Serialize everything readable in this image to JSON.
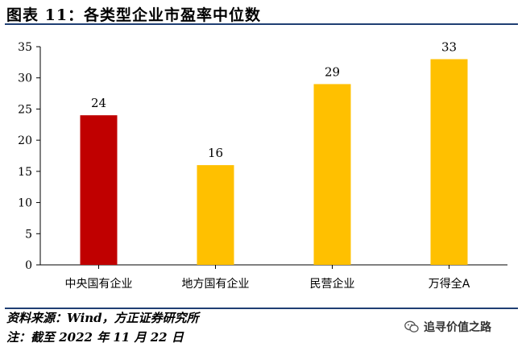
{
  "figure": {
    "title": "图表 11：各类型企业市盈率中位数",
    "source": "资料来源：Wind，方正证券研究所",
    "note": "注：截至 2022 年 11 月 22 日",
    "watermark": "追寻价值之路"
  },
  "chart_data": {
    "type": "bar",
    "title": "",
    "xlabel": "",
    "ylabel": "",
    "categories": [
      "中央国有企业",
      "地方国有企业",
      "民营企业",
      "万得全A"
    ],
    "values": [
      24,
      16,
      29,
      33
    ],
    "data_labels": [
      "24",
      "16",
      "29",
      "33"
    ],
    "colors": [
      "#c00000",
      "#ffc000",
      "#ffc000",
      "#ffc000"
    ],
    "ylim": [
      0,
      35
    ],
    "yticks": [
      0,
      5,
      10,
      15,
      20,
      25,
      30,
      35
    ],
    "grid": false,
    "legend": "none"
  }
}
